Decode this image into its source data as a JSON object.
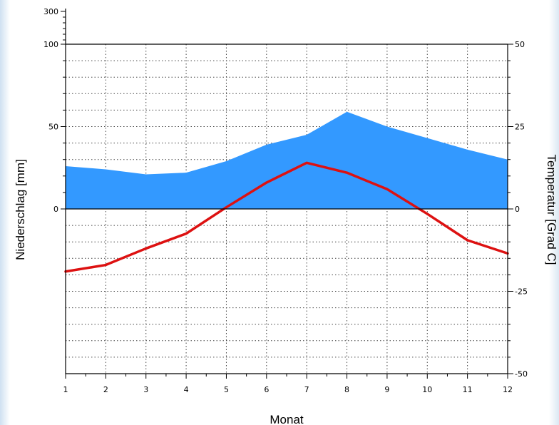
{
  "chart_data": {
    "type": "area+line",
    "title": "",
    "xlabel": "Monat",
    "ylabel_left": "Niederschlag [mm]",
    "ylabel_right": "Temperatur [Grad C]",
    "x": [
      1,
      2,
      3,
      4,
      5,
      6,
      7,
      8,
      9,
      10,
      11,
      12
    ],
    "x_tick_labels": [
      "1",
      "2",
      "3",
      "4",
      "5",
      "6",
      "7",
      "8",
      "9",
      "10",
      "11",
      "12"
    ],
    "left_axis": {
      "ticks": [
        0,
        50,
        100
      ],
      "extra_tick_label": "300",
      "ylim": [
        -100,
        100
      ]
    },
    "right_axis": {
      "ticks": [
        -50,
        -25,
        0,
        25,
        50
      ],
      "ylim": [
        -50,
        50
      ]
    },
    "grid": true,
    "series": [
      {
        "type": "area",
        "axis": "left",
        "color": "#3399ff",
        "values": [
          26,
          24,
          21,
          22,
          29,
          39,
          45,
          59,
          50,
          43,
          36,
          30
        ]
      },
      {
        "type": "line",
        "axis": "right",
        "color": "#dd1111",
        "values": [
          -19,
          -17,
          -12,
          -7.5,
          0.5,
          8,
          14,
          11,
          6,
          -1.5,
          -9.5,
          -13.5
        ]
      }
    ]
  }
}
